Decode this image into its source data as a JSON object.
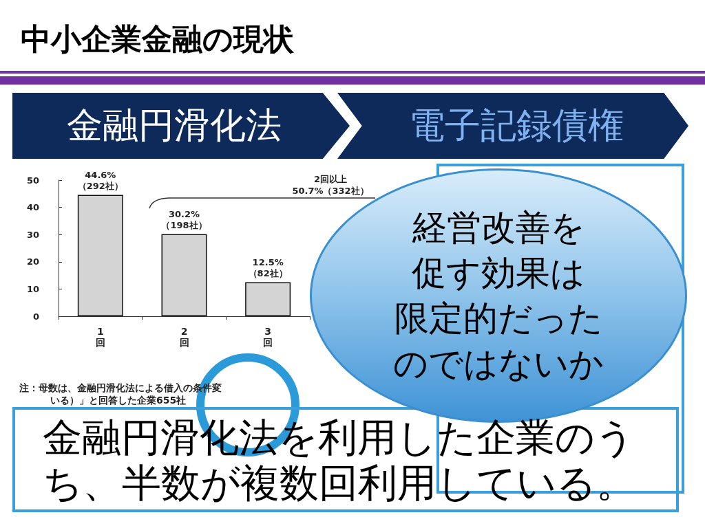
{
  "chart_data": {
    "type": "bar",
    "title": "中小企業金融の現状",
    "categories": [
      "1回",
      "2回",
      "3回"
    ],
    "values": [
      44.6,
      30.2,
      12.5
    ],
    "color": "#d4d4d4",
    "value_labels": [
      "44.6%\n（292社）",
      "30.2%\n（198社）",
      "12.5%\n（82社）"
    ],
    "ylim": [
      0,
      50
    ],
    "yticks": [
      0,
      10,
      20,
      30,
      40,
      50
    ],
    "grid": false,
    "annotations": [
      "金融円滑化法",
      "電子記録債権",
      "2回以上\n50.7%（332社）",
      "注：母数は、金融円滑化法による借入の条件変",
      "いる）」と回答した企業655社",
      "経営改善を",
      "促す効果は",
      "限定的だった",
      "のではないか",
      "金融円滑化法を利用した企業のうち、半数が複数回利用している。"
    ]
  }
}
